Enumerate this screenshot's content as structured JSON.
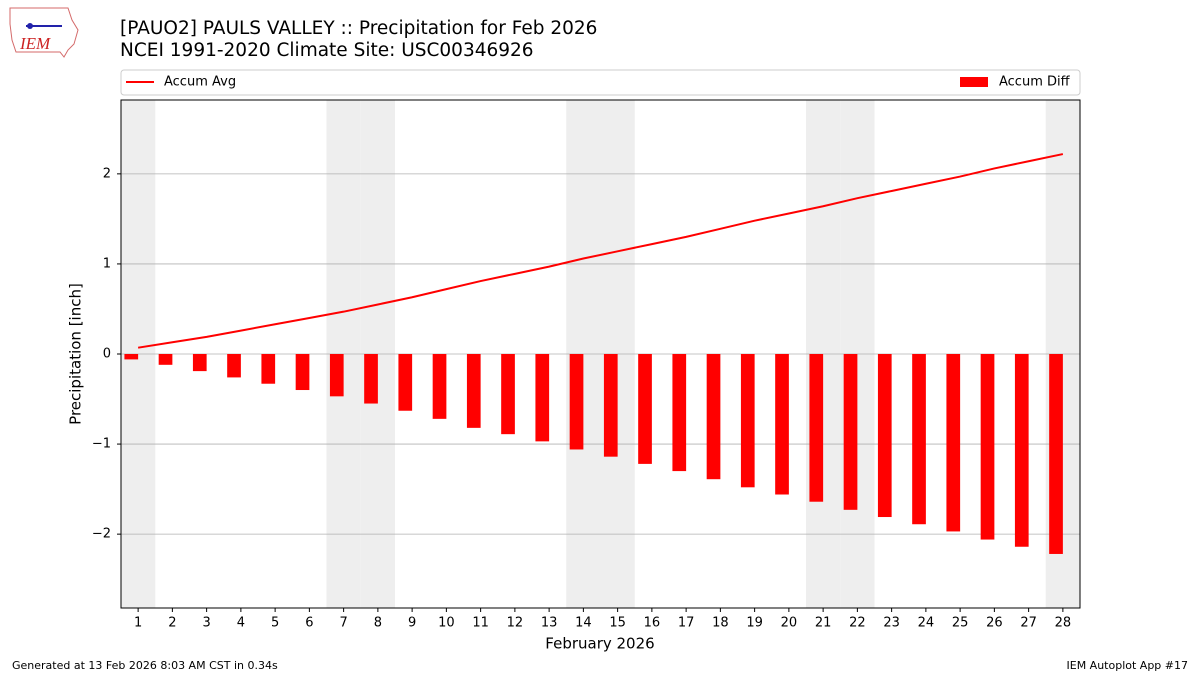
{
  "chart_data": {
    "type": "bar_line",
    "title": "[PAUO2] PAULS VALLEY :: Precipitation for Feb 2026",
    "subtitle": "NCEI 1991-2020 Climate Site: USC00346926",
    "x_label": "February 2026",
    "y_label": "Precipitation [inch]",
    "x": [
      1,
      2,
      3,
      4,
      5,
      6,
      7,
      8,
      9,
      10,
      11,
      12,
      13,
      14,
      15,
      16,
      17,
      18,
      19,
      20,
      21,
      22,
      23,
      24,
      25,
      26,
      27,
      28
    ],
    "xlim": [
      0.5,
      28.5
    ],
    "xticks": [
      1,
      2,
      3,
      4,
      5,
      6,
      7,
      8,
      9,
      10,
      11,
      12,
      13,
      14,
      15,
      16,
      17,
      18,
      19,
      20,
      21,
      22,
      23,
      24,
      25,
      26,
      27,
      28
    ],
    "ylim": [
      -2.82,
      2.82
    ],
    "yticks": [
      {
        "value": -2,
        "label": "−2"
      },
      {
        "value": -1,
        "label": "−1"
      },
      0,
      1,
      2
    ],
    "grid": true,
    "shaded_days": [
      1,
      7,
      8,
      14,
      15,
      21,
      22,
      28
    ],
    "shade_color": "#eeeeee",
    "series": [
      {
        "name": "Accum Avg",
        "type": "line",
        "color": "#ff0000",
        "values": [
          0.07,
          0.13,
          0.19,
          0.26,
          0.33,
          0.4,
          0.47,
          0.55,
          0.63,
          0.72,
          0.81,
          0.89,
          0.97,
          1.06,
          1.14,
          1.22,
          1.3,
          1.39,
          1.48,
          1.56,
          1.64,
          1.73,
          1.81,
          1.89,
          1.97,
          2.06,
          2.14,
          2.22
        ]
      },
      {
        "name": "Accum Diff",
        "type": "bar",
        "color": "#ff0000",
        "values": [
          -0.06,
          -0.12,
          -0.19,
          -0.26,
          -0.33,
          -0.4,
          -0.47,
          -0.55,
          -0.63,
          -0.72,
          -0.82,
          -0.89,
          -0.97,
          -1.06,
          -1.14,
          -1.22,
          -1.3,
          -1.39,
          -1.48,
          -1.56,
          -1.64,
          -1.73,
          -1.81,
          -1.89,
          -1.97,
          -2.06,
          -2.14,
          -2.22
        ]
      }
    ]
  },
  "logo_text": "IEM",
  "footer": {
    "left": "Generated at 13 Feb 2026 8:03 AM CST in 0.34s",
    "right": "IEM Autoplot App #17"
  }
}
